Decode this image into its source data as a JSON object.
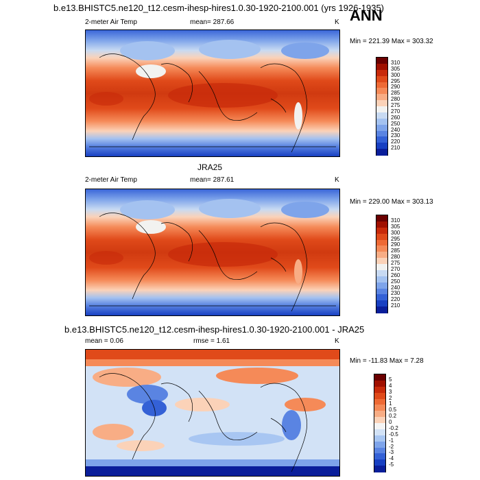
{
  "top_title": "b.e13.BHISTC5.ne120_t12.cesm-ihesp-hires1.0.30-1920-2100.001 (yrs 1926-1935)",
  "season": "ANN",
  "panels": [
    {
      "variable": "2-meter Air Temp",
      "mean": "mean= 287.66",
      "unit": "K",
      "minmax": "Min = 221.39 Max = 303.32",
      "colorbar": {
        "labels": [
          "310",
          "305",
          "300",
          "295",
          "290",
          "285",
          "280",
          "275",
          "270",
          "260",
          "250",
          "240",
          "230",
          "220",
          "210"
        ],
        "colors": [
          "#6b0000",
          "#a01000",
          "#c82a0a",
          "#e04a1a",
          "#ee6a35",
          "#f58a58",
          "#f8ad85",
          "#fbd2b8",
          "#f2f2f0",
          "#c8daf2",
          "#a4c2f0",
          "#7ea4ea",
          "#5a84e2",
          "#3461d6",
          "#1840c2",
          "#0a1e9a"
        ]
      }
    },
    {
      "title": "JRA25",
      "variable": "2-meter Air Temp",
      "mean": "mean= 287.61",
      "unit": "K",
      "minmax": "Min = 229.00 Max = 303.13",
      "colorbar": {
        "labels": [
          "310",
          "305",
          "300",
          "295",
          "290",
          "285",
          "280",
          "275",
          "270",
          "260",
          "250",
          "240",
          "230",
          "220",
          "210"
        ],
        "colors": [
          "#6b0000",
          "#a01000",
          "#c82a0a",
          "#e04a1a",
          "#ee6a35",
          "#f58a58",
          "#f8ad85",
          "#fbd2b8",
          "#f2f2f0",
          "#c8daf2",
          "#a4c2f0",
          "#7ea4ea",
          "#5a84e2",
          "#3461d6",
          "#1840c2",
          "#0a1e9a"
        ]
      }
    },
    {
      "title": "b.e13.BHISTC5.ne120_t12.cesm-ihesp-hires1.0.30-1920-2100.001 - JRA25",
      "mean": "mean =   0.06",
      "rmse": "rmse =   1.61",
      "unit": "K",
      "minmax": "Min = -11.83 Max =   7.28",
      "colorbar": {
        "labels": [
          "5",
          "4",
          "3",
          "2",
          "1",
          "0.5",
          "0.2",
          "0",
          "-0.2",
          "-0.5",
          "-1",
          "-2",
          "-3",
          "-4",
          "-5"
        ],
        "colors": [
          "#6b0000",
          "#a01000",
          "#c82a0a",
          "#e04a1a",
          "#ee6a35",
          "#f58a58",
          "#f8ad85",
          "#fbd2b8",
          "#f4f4f4",
          "#d2e2f6",
          "#a8c6f2",
          "#7ea4ea",
          "#5a84e2",
          "#3461d6",
          "#1840c2",
          "#0a1e9a"
        ]
      }
    }
  ]
}
